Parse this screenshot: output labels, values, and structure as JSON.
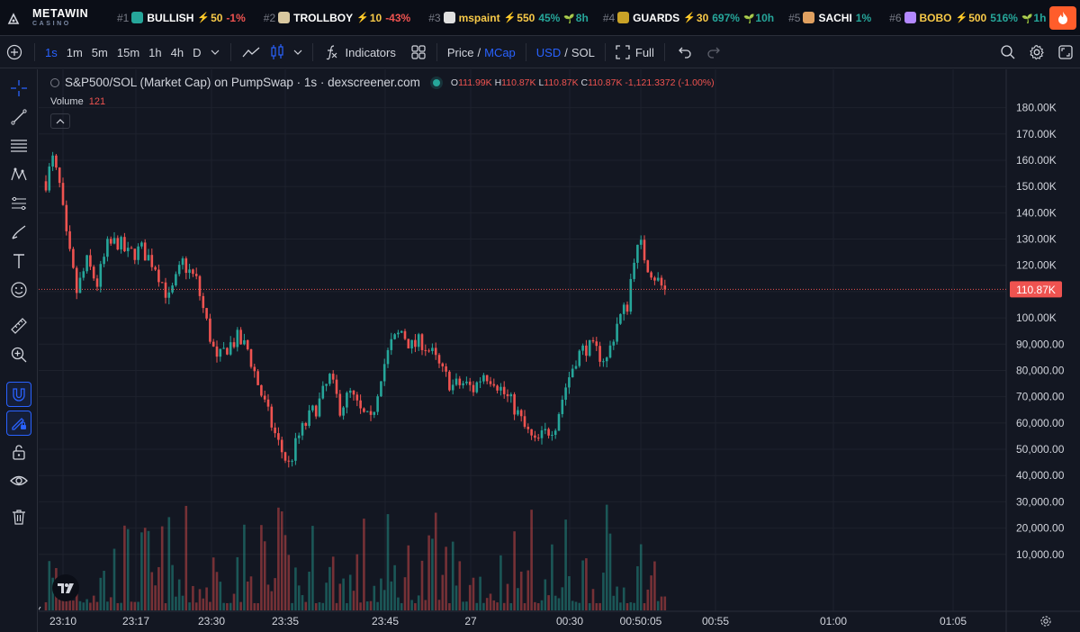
{
  "ticker": {
    "brand_main": "METAWIN",
    "brand_sub": "CASINO",
    "items": [
      {
        "rank": "#1",
        "name": "BULLISH",
        "boost": "50",
        "change": "-1%",
        "change_color": "#ef5350",
        "age": "",
        "icon_color": "#26a69a"
      },
      {
        "rank": "#2",
        "name": "TROLLBOY",
        "boost": "10",
        "change": "-43%",
        "change_color": "#ef5350",
        "age": "",
        "icon_color": "#d9c8a0"
      },
      {
        "rank": "#3",
        "name": "mspaint",
        "boost": "550",
        "change": "45%",
        "change_color": "#26a69a",
        "age": "8h",
        "icon_color": "#e0e0e0",
        "name_color": "#f7c948"
      },
      {
        "rank": "#4",
        "name": "GUARDS",
        "boost": "30",
        "change": "697%",
        "change_color": "#26a69a",
        "age": "10h",
        "icon_color": "#c9a227"
      },
      {
        "rank": "#5",
        "name": "SACHI",
        "boost": "",
        "change": "1%",
        "change_color": "#26a69a",
        "age": "",
        "icon_color": "#e0a060"
      },
      {
        "rank": "#6",
        "name": "BOBO",
        "boost": "500",
        "change": "516%",
        "change_color": "#26a69a",
        "age": "1h",
        "icon_color": "#b388ff",
        "name_color": "#f7c948"
      }
    ]
  },
  "toolbar": {
    "timeframes": [
      "1s",
      "1m",
      "5m",
      "15m",
      "1h",
      "4h",
      "D"
    ],
    "active_timeframe": "1s",
    "indicators_label": "Indicators",
    "price_label": "Price",
    "mcap_label": "MCap",
    "usd_label": "USD",
    "sol_label": "SOL",
    "full_label": "Full"
  },
  "legend": {
    "title": "S&P500/SOL (Market Cap) on PumpSwap · 1s · dexscreener.com",
    "o_label": "O",
    "o": "111.99K",
    "h_label": "H",
    "h": "110.87K",
    "l_label": "L",
    "l": "110.87K",
    "c_label": "C",
    "c": "110.87K",
    "change": "-1,121.3372 (-1.00%)",
    "volume_label": "Volume",
    "volume_value": "121"
  },
  "colors": {
    "up": "#26a69a",
    "down": "#ef5350",
    "background": "#131722",
    "grid": "#1e222d",
    "accent": "#2962ff"
  },
  "chart_data": {
    "type": "candlestick",
    "title": "S&P500/SOL (Market Cap) on PumpSwap · 1s · dexscreener.com",
    "y_axis_unit": "market cap (USD)",
    "ylim": [
      0,
      185000
    ],
    "y_ticks": [
      10000,
      20000,
      30000,
      40000,
      50000,
      60000,
      70000,
      80000,
      90000,
      100000,
      110000,
      120000,
      130000,
      140000,
      150000,
      160000,
      170000,
      180000
    ],
    "y_tick_labels": [
      "10,000.00",
      "20,000.00",
      "30,000.00",
      "40,000.00",
      "50,000.00",
      "60,000.00",
      "70,000.00",
      "80,000.00",
      "90,000.00",
      "100.00K",
      "110.00K",
      "120.00K",
      "130.00K",
      "140.00K",
      "150.00K",
      "160.00K",
      "170.00K",
      "180.00K"
    ],
    "x_tick_labels": [
      "23:10",
      "23:17",
      "23:30",
      "23:35",
      "23:45",
      "27",
      "00:30",
      "00:50:05",
      "00:55",
      "01:00",
      "01:05"
    ],
    "last_price_label": "110.87K",
    "last_price": 110870,
    "grid": true,
    "price_path": [
      [
        0,
        152000
      ],
      [
        2,
        160000
      ],
      [
        4,
        150000
      ],
      [
        6,
        130000
      ],
      [
        9,
        110000
      ],
      [
        12,
        121000
      ],
      [
        15,
        113000
      ],
      [
        18,
        127000
      ],
      [
        21,
        129000
      ],
      [
        24,
        124000
      ],
      [
        28,
        126000
      ],
      [
        32,
        120000
      ],
      [
        36,
        107000
      ],
      [
        40,
        121000
      ],
      [
        44,
        114000
      ],
      [
        47,
        98000
      ],
      [
        50,
        83000
      ],
      [
        53,
        89000
      ],
      [
        56,
        92000
      ],
      [
        59,
        88000
      ],
      [
        62,
        75000
      ],
      [
        65,
        63000
      ],
      [
        68,
        52000
      ],
      [
        71,
        44000
      ],
      [
        74,
        55000
      ],
      [
        77,
        62000
      ],
      [
        80,
        68000
      ],
      [
        83,
        77000
      ],
      [
        86,
        66000
      ],
      [
        89,
        71000
      ],
      [
        92,
        64000
      ],
      [
        95,
        60000
      ],
      [
        98,
        79000
      ],
      [
        101,
        90000
      ],
      [
        104,
        95000
      ],
      [
        107,
        89000
      ],
      [
        110,
        91000
      ],
      [
        113,
        86000
      ],
      [
        116,
        79000
      ],
      [
        119,
        74000
      ],
      [
        122,
        75000
      ],
      [
        125,
        73000
      ],
      [
        128,
        79000
      ],
      [
        131,
        77000
      ],
      [
        134,
        71000
      ],
      [
        137,
        66000
      ],
      [
        140,
        58000
      ],
      [
        143,
        52000
      ],
      [
        146,
        56000
      ],
      [
        149,
        60000
      ],
      [
        152,
        74000
      ],
      [
        155,
        85000
      ],
      [
        158,
        89000
      ],
      [
        161,
        87000
      ],
      [
        164,
        84000
      ],
      [
        167,
        98000
      ],
      [
        170,
        105000
      ],
      [
        172,
        124000
      ],
      [
        174,
        127000
      ],
      [
        176,
        120000
      ],
      [
        178,
        116000
      ],
      [
        180,
        112000
      ],
      [
        181,
        110870
      ]
    ]
  }
}
